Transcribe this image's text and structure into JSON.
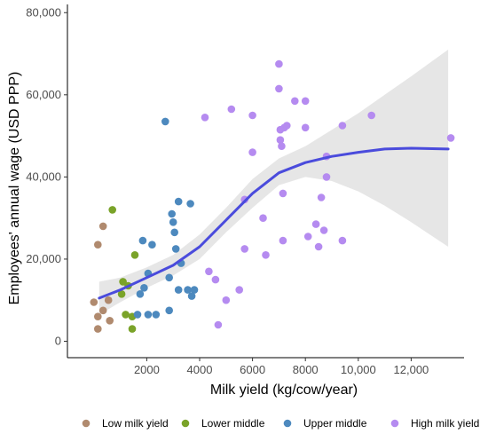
{
  "chart_data": {
    "type": "scatter",
    "xlabel": "Milk yield (kg/cow/year)",
    "ylabel": "Employees' annual wage (USD PPP)",
    "xlim": [
      -1000,
      14000
    ],
    "ylim": [
      -4000,
      82000
    ],
    "x_ticks": [
      2000,
      4000,
      6000,
      8000,
      10000,
      12000
    ],
    "x_tick_labels": [
      "2000",
      "4000",
      "6000",
      "8000",
      "10,000",
      "12,000"
    ],
    "y_ticks": [
      0,
      20000,
      40000,
      60000,
      80000
    ],
    "y_tick_labels": [
      "0",
      "20,000",
      "40,000",
      "60,000",
      "80,000"
    ],
    "grid": false,
    "legend_position": "bottom",
    "series": [
      {
        "name": "Low milk yield",
        "color": "#b08a6e",
        "points": [
          [
            0,
            9500
          ],
          [
            150,
            23500
          ],
          [
            150,
            6000
          ],
          [
            150,
            3000
          ],
          [
            350,
            28000
          ],
          [
            350,
            7500
          ],
          [
            550,
            10000
          ],
          [
            600,
            5000
          ]
        ]
      },
      {
        "name": "Lower middle",
        "color": "#7aa329",
        "points": [
          [
            700,
            32000
          ],
          [
            1050,
            11500
          ],
          [
            1100,
            14500
          ],
          [
            1200,
            6500
          ],
          [
            1300,
            13500
          ],
          [
            1450,
            6000
          ],
          [
            1450,
            3000
          ],
          [
            1550,
            21000
          ]
        ]
      },
      {
        "name": "Upper middle",
        "color": "#4d89be",
        "points": [
          [
            1650,
            6500
          ],
          [
            1750,
            11500
          ],
          [
            1850,
            24500
          ],
          [
            1900,
            13000
          ],
          [
            2050,
            6500
          ],
          [
            2050,
            16500
          ],
          [
            2200,
            23500
          ],
          [
            2350,
            6500
          ],
          [
            2700,
            53500
          ],
          [
            2850,
            7500
          ],
          [
            2850,
            15500
          ],
          [
            2950,
            31000
          ],
          [
            3000,
            29000
          ],
          [
            3050,
            26500
          ],
          [
            3100,
            22500
          ],
          [
            3200,
            34000
          ],
          [
            3200,
            12500
          ],
          [
            3300,
            19000
          ],
          [
            3550,
            12500
          ],
          [
            3650,
            33500
          ],
          [
            3700,
            11000
          ],
          [
            3800,
            12500
          ]
        ]
      },
      {
        "name": "High milk yield",
        "color": "#b58bf0",
        "points": [
          [
            4200,
            54500
          ],
          [
            4350,
            17000
          ],
          [
            4600,
            15000
          ],
          [
            4700,
            4000
          ],
          [
            5000,
            10000
          ],
          [
            5200,
            56500
          ],
          [
            5500,
            12500
          ],
          [
            5700,
            22500
          ],
          [
            5700,
            34500
          ],
          [
            6000,
            55000
          ],
          [
            6000,
            46000
          ],
          [
            6400,
            30000
          ],
          [
            6500,
            21000
          ],
          [
            7000,
            67500
          ],
          [
            7000,
            61500
          ],
          [
            7050,
            51500
          ],
          [
            7050,
            49000
          ],
          [
            7100,
            47500
          ],
          [
            7150,
            36000
          ],
          [
            7150,
            24500
          ],
          [
            7200,
            52000
          ],
          [
            7300,
            52500
          ],
          [
            7600,
            58500
          ],
          [
            8000,
            58500
          ],
          [
            8000,
            52000
          ],
          [
            8100,
            25500
          ],
          [
            8400,
            28500
          ],
          [
            8500,
            23000
          ],
          [
            8600,
            35000
          ],
          [
            8700,
            27000
          ],
          [
            8800,
            45000
          ],
          [
            8800,
            40000
          ],
          [
            9400,
            52500
          ],
          [
            9400,
            24500
          ],
          [
            10500,
            55000
          ],
          [
            13500,
            49500
          ]
        ]
      }
    ],
    "smooth": {
      "color": "#4a4bdc",
      "band_color": "#e6e6e6",
      "x": [
        200,
        1000,
        2000,
        3000,
        4000,
        5000,
        6000,
        7000,
        8000,
        9000,
        10000,
        11000,
        12000,
        13400
      ],
      "y": [
        10500,
        12500,
        15500,
        18500,
        23000,
        29500,
        36000,
        41000,
        43500,
        45000,
        46000,
        46800,
        47000,
        46800
      ],
      "lower": [
        6500,
        9500,
        13000,
        16000,
        20000,
        26500,
        32500,
        38000,
        40000,
        39000,
        36500,
        33000,
        29000,
        23000
      ],
      "upper": [
        14500,
        15500,
        18000,
        21000,
        26000,
        32500,
        39500,
        44500,
        47500,
        51500,
        55500,
        60000,
        64500,
        71000
      ]
    }
  }
}
